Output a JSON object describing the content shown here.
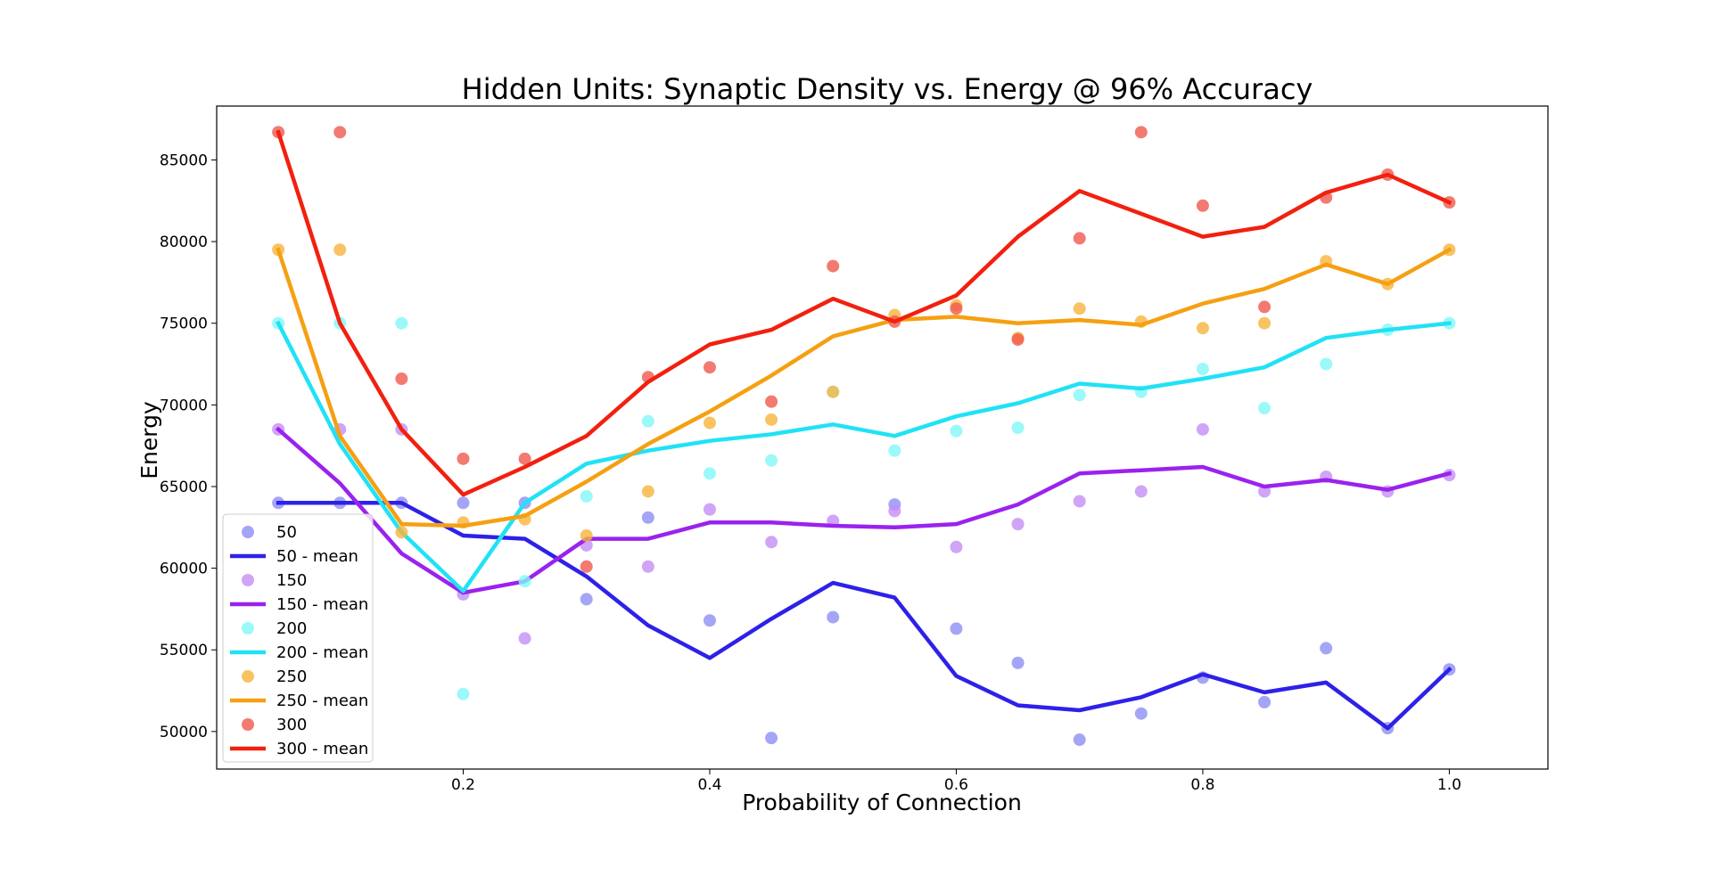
{
  "chart_data": {
    "type": "scatter",
    "title": "Hidden Units: Synaptic Density vs. Energy @ 96% Accuracy",
    "xlabel": "Probability of Connection",
    "ylabel": "Energy",
    "xlim": [
      0.0,
      1.08
    ],
    "ylim": [
      47700,
      88300
    ],
    "xticks": [
      0.2,
      0.4,
      0.6,
      0.8,
      1.0
    ],
    "xtick_labels": [
      "0.2",
      "0.4",
      "0.6",
      "0.8",
      "1.0"
    ],
    "yticks": [
      50000,
      55000,
      60000,
      65000,
      70000,
      75000,
      80000,
      85000
    ],
    "ytick_labels": [
      "50000",
      "55000",
      "60000",
      "65000",
      "70000",
      "75000",
      "80000",
      "85000"
    ],
    "grid": false,
    "legend_position": "lower-left",
    "x": [
      0.05,
      0.1,
      0.15,
      0.2,
      0.25,
      0.3,
      0.35,
      0.4,
      0.45,
      0.5,
      0.55,
      0.6,
      0.65,
      0.7,
      0.75,
      0.8,
      0.85,
      0.9,
      0.95,
      1.0
    ],
    "series": [
      {
        "name": "50",
        "mean_name": "50 - mean",
        "point_color": "#8f8ff5",
        "line_color": "#2d21e8",
        "points": [
          64000,
          64000,
          64000,
          64000,
          64000,
          58100,
          63100,
          56800,
          49600,
          57000,
          63900,
          56300,
          54200,
          49500,
          51100,
          53300,
          51800,
          55100,
          50200,
          53800
        ],
        "mean": [
          64000,
          64000,
          64000,
          62000,
          61800,
          59500,
          56500,
          54500,
          56900,
          59100,
          58200,
          53400,
          51600,
          51300,
          52100,
          53500,
          52400,
          53000,
          50200,
          53800
        ]
      },
      {
        "name": "150",
        "mean_name": "150 - mean",
        "point_color": "#c48df5",
        "line_color": "#9a22ee",
        "points": [
          68500,
          68500,
          68500,
          58400,
          55700,
          61400,
          60100,
          63600,
          61600,
          62900,
          63500,
          61300,
          62700,
          64100,
          64700,
          68500,
          64700,
          65600,
          64700,
          65700
        ],
        "mean": [
          68500,
          65200,
          60900,
          58500,
          59200,
          61800,
          61800,
          62800,
          62800,
          62600,
          62500,
          62700,
          63900,
          65800,
          66000,
          66200,
          65000,
          65400,
          64800,
          65800
        ]
      },
      {
        "name": "200",
        "mean_name": "200 - mean",
        "point_color": "#82f7f7",
        "line_color": "#20e2f5",
        "points": [
          75000,
          75000,
          75000,
          52300,
          59200,
          64400,
          69000,
          65800,
          66600,
          70800,
          67200,
          68400,
          68600,
          70600,
          70800,
          72200,
          69800,
          72500,
          74600,
          75000
        ],
        "mean": [
          75000,
          67600,
          62200,
          58600,
          64000,
          66400,
          67200,
          67800,
          68200,
          68800,
          68100,
          69300,
          70100,
          71300,
          71000,
          71600,
          72300,
          74100,
          74600,
          75000
        ]
      },
      {
        "name": "250",
        "mean_name": "250 - mean",
        "point_color": "#f8b43c",
        "line_color": "#f5a012",
        "points": [
          79500,
          79500,
          62200,
          62800,
          63000,
          62000,
          64700,
          68900,
          69100,
          70800,
          75500,
          76100,
          74100,
          75900,
          75100,
          74700,
          75000,
          78800,
          77400,
          79500
        ],
        "mean": [
          79500,
          68100,
          62700,
          62600,
          63200,
          65300,
          67600,
          69600,
          71800,
          74200,
          75200,
          75400,
          75000,
          75200,
          74900,
          76200,
          77100,
          78600,
          77400,
          79500
        ]
      },
      {
        "name": "300",
        "mean_name": "300 - mean",
        "point_color": "#f0594c",
        "line_color": "#f2200f",
        "points": [
          86700,
          86700,
          71600,
          66700,
          66700,
          60100,
          71700,
          72300,
          70200,
          78500,
          75100,
          75900,
          74000,
          80200,
          86700,
          82200,
          76000,
          82700,
          84100,
          82400
        ],
        "mean": [
          86700,
          75000,
          68500,
          64500,
          66200,
          68100,
          71400,
          73700,
          74600,
          76500,
          75100,
          76700,
          80300,
          83100,
          81700,
          80300,
          80900,
          83000,
          84100,
          82400
        ]
      }
    ]
  }
}
